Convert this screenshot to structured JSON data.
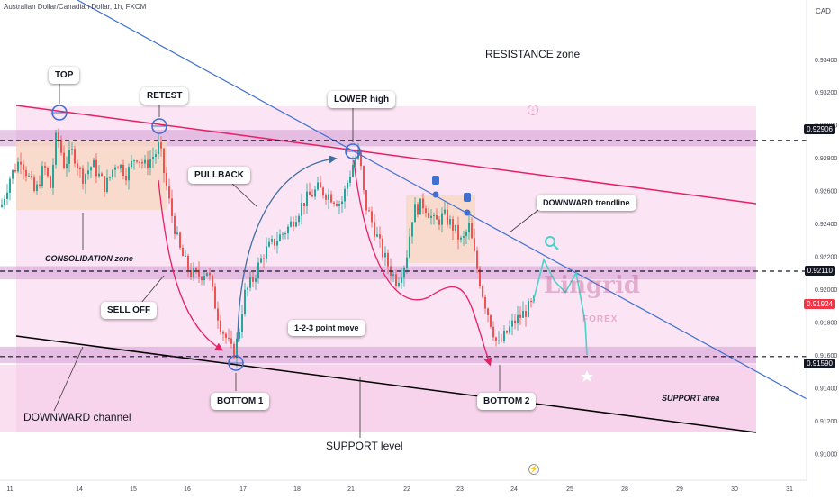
{
  "header": {
    "symbol_title": "Australian Dollar/Canadian Dollar, 1h, FXCM",
    "currency": "CAD"
  },
  "watermark": {
    "brand": "Lingrid",
    "sub": "FOREX"
  },
  "annotations": {
    "top": "TOP",
    "retest": "RETEST",
    "lower_high": "LOWER high",
    "pullback": "PULLBACK",
    "downward_trendline": "DOWNWARD trendline",
    "sell_off": "SELL OFF",
    "one_two_three": "1-2-3 point move",
    "bottom1": "BOTTOM 1",
    "bottom2": "BOTTOM 2",
    "resistance_zone": "RESISTANCE zone",
    "consolidation_zone": "CONSOLIDATION zone",
    "support_area": "SUPPORT area",
    "downward_channel": "DOWNWARD channel",
    "support_level": "SUPPORT level"
  },
  "colors": {
    "bullish": "#26a69a",
    "bearish": "#ef5350",
    "zone": "#d49ad3",
    "channel": "#e91e63",
    "trendline": "#3f6fd0",
    "pink_bg": "#fbe4f3",
    "consolidation": "#f8d8c0"
  },
  "chart_data": {
    "type": "candlestick",
    "title": "Australian Dollar/Canadian Dollar, 1h, FXCM",
    "y_axis": {
      "range": [
        0.9092,
        0.9364
      ],
      "ticks": [
        "0.93400",
        "0.93200",
        "0.93000",
        "0.92800",
        "0.92600",
        "0.92400",
        "0.92200",
        "0.92000",
        "0.91800",
        "0.91600",
        "0.91400",
        "0.91200",
        "0.91000"
      ]
    },
    "x_axis": {
      "ticks": [
        "11",
        "14",
        "15",
        "16",
        "17",
        "18",
        "21",
        "22",
        "23",
        "24",
        "25",
        "28",
        "29",
        "30",
        "31"
      ]
    },
    "price_levels": [
      {
        "price": 0.92906,
        "label": "0.92906"
      },
      {
        "price": 0.9211,
        "label": "0.92110"
      },
      {
        "price": 0.9159,
        "label": "0.91590"
      }
    ],
    "last_price": {
      "price": 0.91924,
      "label": "0.91924"
    },
    "zones": [
      {
        "name": "resistance",
        "from": 0.9287,
        "to": 0.9297
      },
      {
        "name": "mid",
        "from": 0.9206,
        "to": 0.9214
      },
      {
        "name": "support",
        "from": 0.9155,
        "to": 0.9165
      }
    ],
    "price_path": [
      [
        0,
        0.925
      ],
      [
        10,
        0.9268
      ],
      [
        22,
        0.928
      ],
      [
        38,
        0.9258
      ],
      [
        48,
        0.9275
      ],
      [
        55,
        0.9262
      ],
      [
        62,
        0.9296
      ],
      [
        70,
        0.9276
      ],
      [
        80,
        0.9284
      ],
      [
        90,
        0.9268
      ],
      [
        102,
        0.9276
      ],
      [
        116,
        0.9262
      ],
      [
        128,
        0.9278
      ],
      [
        140,
        0.927
      ],
      [
        150,
        0.9282
      ],
      [
        160,
        0.9275
      ],
      [
        172,
        0.9283
      ],
      [
        176,
        0.9288
      ],
      [
        182,
        0.9268
      ],
      [
        188,
        0.925
      ],
      [
        198,
        0.9225
      ],
      [
        210,
        0.921
      ],
      [
        220,
        0.9208
      ],
      [
        230,
        0.9212
      ],
      [
        236,
        0.9195
      ],
      [
        244,
        0.9178
      ],
      [
        252,
        0.9168
      ],
      [
        258,
        0.916
      ],
      [
        264,
        0.9172
      ],
      [
        270,
        0.9196
      ],
      [
        280,
        0.9206
      ],
      [
        292,
        0.9222
      ],
      [
        306,
        0.923
      ],
      [
        320,
        0.9238
      ],
      [
        336,
        0.9253
      ],
      [
        352,
        0.9261
      ],
      [
        366,
        0.9257
      ],
      [
        378,
        0.9252
      ],
      [
        386,
        0.9267
      ],
      [
        392,
        0.9278
      ],
      [
        398,
        0.9283
      ],
      [
        404,
        0.9253
      ],
      [
        414,
        0.9238
      ],
      [
        424,
        0.9222
      ],
      [
        434,
        0.921
      ],
      [
        440,
        0.9205
      ],
      [
        450,
        0.9218
      ],
      [
        458,
        0.9248
      ],
      [
        470,
        0.9252
      ],
      [
        482,
        0.924
      ],
      [
        492,
        0.9245
      ],
      [
        502,
        0.9238
      ],
      [
        512,
        0.9228
      ],
      [
        520,
        0.9238
      ],
      [
        528,
        0.9215
      ],
      [
        536,
        0.9195
      ],
      [
        544,
        0.918
      ],
      [
        552,
        0.9165
      ],
      [
        560,
        0.9172
      ],
      [
        570,
        0.918
      ],
      [
        580,
        0.9185
      ],
      [
        592,
        0.9192
      ]
    ],
    "projection": [
      [
        592,
        0.9192
      ],
      [
        604,
        0.9218
      ],
      [
        616,
        0.9205
      ],
      [
        628,
        0.9198
      ],
      [
        640,
        0.921
      ],
      [
        650,
        0.918
      ],
      [
        652,
        0.916
      ]
    ]
  }
}
